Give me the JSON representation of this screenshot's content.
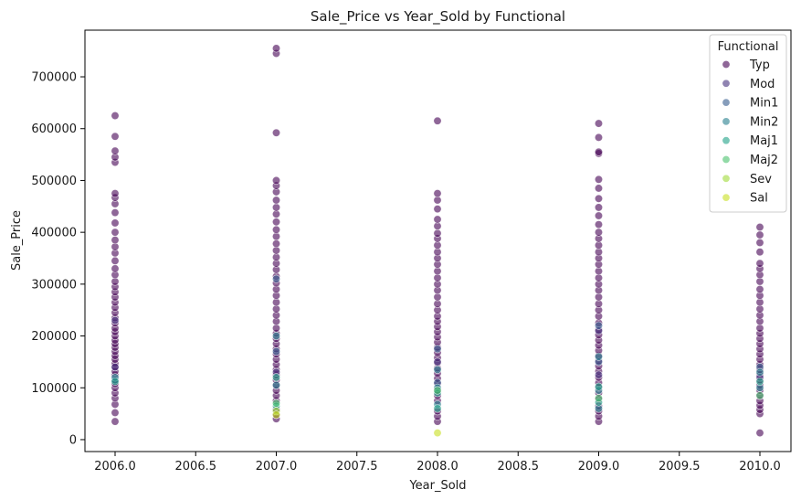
{
  "chart_data": {
    "type": "scatter",
    "title": "Sale_Price vs Year_Sold by Functional",
    "xlabel": "Year_Sold",
    "ylabel": "Sale_Price",
    "xlim": [
      1995.8,
      2010.2
    ],
    "ylim": [
      -23000,
      790000
    ],
    "x_ticks": [
      2006.0,
      2006.5,
      2007.0,
      2007.5,
      2008.0,
      2008.5,
      2009.0,
      2009.5,
      2010.0
    ],
    "x_tick_labels": [
      "2006.0",
      "2006.5",
      "2007.0",
      "2007.5",
      "2008.0",
      "2008.5",
      "2009.0",
      "2009.5",
      "2010.0"
    ],
    "y_ticks": [
      0,
      100000,
      200000,
      300000,
      400000,
      500000,
      600000,
      700000
    ],
    "y_tick_labels": [
      "0",
      "100000",
      "200000",
      "300000",
      "400000",
      "500000",
      "600000",
      "700000"
    ],
    "grid": false,
    "legend": {
      "title": "Functional",
      "placement": "top-right"
    },
    "series": [
      {
        "name": "Typ",
        "color": "#440154",
        "points": [
          [
            2006,
            35000
          ],
          [
            2006,
            52000
          ],
          [
            2006,
            68000
          ],
          [
            2006,
            80000
          ],
          [
            2006,
            90000
          ],
          [
            2006,
            100000
          ],
          [
            2006,
            108000
          ],
          [
            2006,
            115000
          ],
          [
            2006,
            125000
          ],
          [
            2006,
            132000
          ],
          [
            2006,
            140000
          ],
          [
            2006,
            147000
          ],
          [
            2006,
            155000
          ],
          [
            2006,
            162000
          ],
          [
            2006,
            170000
          ],
          [
            2006,
            178000
          ],
          [
            2006,
            185000
          ],
          [
            2006,
            192000
          ],
          [
            2006,
            200000
          ],
          [
            2006,
            208000
          ],
          [
            2006,
            215000
          ],
          [
            2006,
            225000
          ],
          [
            2006,
            235000
          ],
          [
            2006,
            245000
          ],
          [
            2006,
            255000
          ],
          [
            2006,
            265000
          ],
          [
            2006,
            275000
          ],
          [
            2006,
            285000
          ],
          [
            2006,
            295000
          ],
          [
            2006,
            305000
          ],
          [
            2006,
            318000
          ],
          [
            2006,
            330000
          ],
          [
            2006,
            345000
          ],
          [
            2006,
            360000
          ],
          [
            2006,
            372000
          ],
          [
            2006,
            385000
          ],
          [
            2006,
            400000
          ],
          [
            2006,
            418000
          ],
          [
            2006,
            438000
          ],
          [
            2006,
            455000
          ],
          [
            2006,
            467000
          ],
          [
            2006,
            475000
          ],
          [
            2006,
            535000
          ],
          [
            2006,
            545000
          ],
          [
            2006,
            557000
          ],
          [
            2006,
            585000
          ],
          [
            2006,
            625000
          ],
          [
            2007,
            40000
          ],
          [
            2007,
            48000
          ],
          [
            2007,
            58000
          ],
          [
            2007,
            75000
          ],
          [
            2007,
            85000
          ],
          [
            2007,
            95000
          ],
          [
            2007,
            105000
          ],
          [
            2007,
            115000
          ],
          [
            2007,
            125000
          ],
          [
            2007,
            135000
          ],
          [
            2007,
            145000
          ],
          [
            2007,
            155000
          ],
          [
            2007,
            165000
          ],
          [
            2007,
            175000
          ],
          [
            2007,
            185000
          ],
          [
            2007,
            195000
          ],
          [
            2007,
            205000
          ],
          [
            2007,
            215000
          ],
          [
            2007,
            228000
          ],
          [
            2007,
            240000
          ],
          [
            2007,
            252000
          ],
          [
            2007,
            265000
          ],
          [
            2007,
            278000
          ],
          [
            2007,
            290000
          ],
          [
            2007,
            302000
          ],
          [
            2007,
            315000
          ],
          [
            2007,
            328000
          ],
          [
            2007,
            340000
          ],
          [
            2007,
            352000
          ],
          [
            2007,
            365000
          ],
          [
            2007,
            378000
          ],
          [
            2007,
            392000
          ],
          [
            2007,
            405000
          ],
          [
            2007,
            420000
          ],
          [
            2007,
            435000
          ],
          [
            2007,
            448000
          ],
          [
            2007,
            462000
          ],
          [
            2007,
            478000
          ],
          [
            2007,
            490000
          ],
          [
            2007,
            500000
          ],
          [
            2007,
            592000
          ],
          [
            2007,
            745000
          ],
          [
            2007,
            755000
          ],
          [
            2008,
            35000
          ],
          [
            2008,
            45000
          ],
          [
            2008,
            55000
          ],
          [
            2008,
            75000
          ],
          [
            2008,
            85000
          ],
          [
            2008,
            95000
          ],
          [
            2008,
            108000
          ],
          [
            2008,
            118000
          ],
          [
            2008,
            128000
          ],
          [
            2008,
            138000
          ],
          [
            2008,
            148000
          ],
          [
            2008,
            158000
          ],
          [
            2008,
            168000
          ],
          [
            2008,
            178000
          ],
          [
            2008,
            188000
          ],
          [
            2008,
            198000
          ],
          [
            2008,
            208000
          ],
          [
            2008,
            218000
          ],
          [
            2008,
            228000
          ],
          [
            2008,
            238000
          ],
          [
            2008,
            250000
          ],
          [
            2008,
            262000
          ],
          [
            2008,
            275000
          ],
          [
            2008,
            288000
          ],
          [
            2008,
            300000
          ],
          [
            2008,
            312000
          ],
          [
            2008,
            325000
          ],
          [
            2008,
            338000
          ],
          [
            2008,
            350000
          ],
          [
            2008,
            362000
          ],
          [
            2008,
            375000
          ],
          [
            2008,
            388000
          ],
          [
            2008,
            398000
          ],
          [
            2008,
            412000
          ],
          [
            2008,
            425000
          ],
          [
            2008,
            445000
          ],
          [
            2008,
            462000
          ],
          [
            2008,
            475000
          ],
          [
            2008,
            615000
          ],
          [
            2009,
            35000
          ],
          [
            2009,
            45000
          ],
          [
            2009,
            55000
          ],
          [
            2009,
            65000
          ],
          [
            2009,
            78000
          ],
          [
            2009,
            90000
          ],
          [
            2009,
            100000
          ],
          [
            2009,
            110000
          ],
          [
            2009,
            120000
          ],
          [
            2009,
            132000
          ],
          [
            2009,
            142000
          ],
          [
            2009,
            152000
          ],
          [
            2009,
            162000
          ],
          [
            2009,
            172000
          ],
          [
            2009,
            182000
          ],
          [
            2009,
            192000
          ],
          [
            2009,
            202000
          ],
          [
            2009,
            212000
          ],
          [
            2009,
            225000
          ],
          [
            2009,
            238000
          ],
          [
            2009,
            250000
          ],
          [
            2009,
            262000
          ],
          [
            2009,
            275000
          ],
          [
            2009,
            288000
          ],
          [
            2009,
            300000
          ],
          [
            2009,
            312000
          ],
          [
            2009,
            325000
          ],
          [
            2009,
            338000
          ],
          [
            2009,
            350000
          ],
          [
            2009,
            362000
          ],
          [
            2009,
            375000
          ],
          [
            2009,
            388000
          ],
          [
            2009,
            400000
          ],
          [
            2009,
            415000
          ],
          [
            2009,
            432000
          ],
          [
            2009,
            448000
          ],
          [
            2009,
            465000
          ],
          [
            2009,
            485000
          ],
          [
            2009,
            502000
          ],
          [
            2009,
            552000
          ],
          [
            2009,
            555000
          ],
          [
            2009,
            583000
          ],
          [
            2009,
            610000
          ],
          [
            2010,
            13000
          ],
          [
            2010,
            50000
          ],
          [
            2010,
            58000
          ],
          [
            2010,
            66000
          ],
          [
            2010,
            75000
          ],
          [
            2010,
            85000
          ],
          [
            2010,
            95000
          ],
          [
            2010,
            105000
          ],
          [
            2010,
            115000
          ],
          [
            2010,
            125000
          ],
          [
            2010,
            135000
          ],
          [
            2010,
            145000
          ],
          [
            2010,
            155000
          ],
          [
            2010,
            165000
          ],
          [
            2010,
            175000
          ],
          [
            2010,
            185000
          ],
          [
            2010,
            195000
          ],
          [
            2010,
            205000
          ],
          [
            2010,
            215000
          ],
          [
            2010,
            228000
          ],
          [
            2010,
            240000
          ],
          [
            2010,
            252000
          ],
          [
            2010,
            265000
          ],
          [
            2010,
            278000
          ],
          [
            2010,
            290000
          ],
          [
            2010,
            305000
          ],
          [
            2010,
            318000
          ],
          [
            2010,
            330000
          ],
          [
            2010,
            340000
          ],
          [
            2010,
            362000
          ],
          [
            2010,
            380000
          ],
          [
            2010,
            395000
          ],
          [
            2010,
            410000
          ]
        ]
      },
      {
        "name": "Mod",
        "color": "#46327e",
        "points": [
          [
            2006,
            140000
          ],
          [
            2007,
            130000
          ],
          [
            2008,
            150000
          ],
          [
            2009,
            125000
          ],
          [
            2010,
            120000
          ],
          [
            2006,
            230000
          ],
          [
            2009,
            210000
          ]
        ]
      },
      {
        "name": "Min1",
        "color": "#365c8d",
        "points": [
          [
            2006,
            115000
          ],
          [
            2007,
            170000
          ],
          [
            2007,
            310000
          ],
          [
            2008,
            110000
          ],
          [
            2008,
            175000
          ],
          [
            2009,
            150000
          ],
          [
            2009,
            220000
          ],
          [
            2010,
            140000
          ]
        ]
      },
      {
        "name": "Min2",
        "color": "#277f8e",
        "points": [
          [
            2006,
            120000
          ],
          [
            2007,
            105000
          ],
          [
            2007,
            200000
          ],
          [
            2008,
            68000
          ],
          [
            2008,
            100000
          ],
          [
            2008,
            135000
          ],
          [
            2009,
            60000
          ],
          [
            2009,
            95000
          ],
          [
            2009,
            160000
          ],
          [
            2010,
            100000
          ],
          [
            2010,
            130000
          ]
        ]
      },
      {
        "name": "Maj1",
        "color": "#1fa187",
        "points": [
          [
            2006,
            112000
          ],
          [
            2007,
            65000
          ],
          [
            2007,
            120000
          ],
          [
            2008,
            90000
          ],
          [
            2008,
            60000
          ],
          [
            2009,
            72000
          ],
          [
            2009,
            102000
          ],
          [
            2010,
            112000
          ]
        ]
      },
      {
        "name": "Maj2",
        "color": "#4ac16d",
        "points": [
          [
            2007,
            70000
          ],
          [
            2008,
            95000
          ],
          [
            2009,
            80000
          ],
          [
            2010,
            85000
          ]
        ]
      },
      {
        "name": "Sev",
        "color": "#a0da39",
        "points": [
          [
            2007,
            55000
          ]
        ]
      },
      {
        "name": "Sal",
        "color": "#c8e020",
        "points": [
          [
            2007,
            48000
          ],
          [
            2008,
            13000
          ]
        ]
      }
    ]
  }
}
